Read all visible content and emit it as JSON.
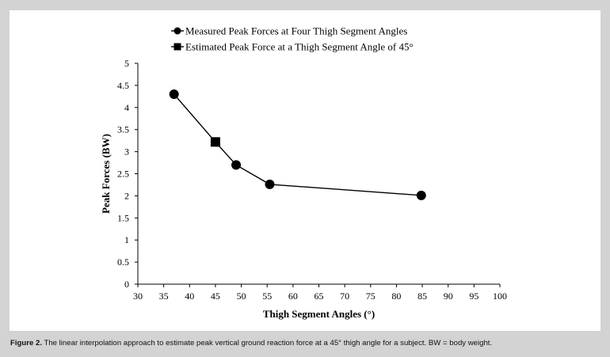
{
  "chart_data": {
    "type": "line",
    "xlabel": "Thigh Segment Angles (°)",
    "ylabel": "Peak Forces (BW)",
    "xlim": [
      30,
      100
    ],
    "ylim": [
      0,
      5
    ],
    "xticks": [
      "30",
      "35",
      "40",
      "45",
      "50",
      "55",
      "60",
      "65",
      "70",
      "75",
      "80",
      "85",
      "90",
      "95",
      "100"
    ],
    "yticks": [
      "0",
      "0.5",
      "1",
      "1.5",
      "2",
      "2.5",
      "3",
      "3.5",
      "4",
      "4.5",
      "5"
    ],
    "grid": false,
    "legend_position": "top",
    "series": [
      {
        "name": "Measured Peak Forces at Four Thigh Segment Angles",
        "marker": "circle",
        "x": [
          37,
          49,
          55.5,
          84.8
        ],
        "y": [
          4.3,
          2.7,
          2.26,
          2.01
        ]
      },
      {
        "name": "Estimated Peak Force at a Thigh Segment Angle of 45°",
        "marker": "square",
        "x": [
          45
        ],
        "y": [
          3.22
        ]
      }
    ],
    "connecting_line": {
      "x": [
        37,
        45,
        49,
        55.5,
        84.8
      ],
      "y": [
        4.3,
        3.22,
        2.7,
        2.26,
        2.01
      ]
    }
  },
  "caption": {
    "label": "Figure 2.",
    "text": " The linear interpolation approach to estimate peak vertical ground reaction force at a 45° thigh angle for a subject. BW = body weight."
  }
}
